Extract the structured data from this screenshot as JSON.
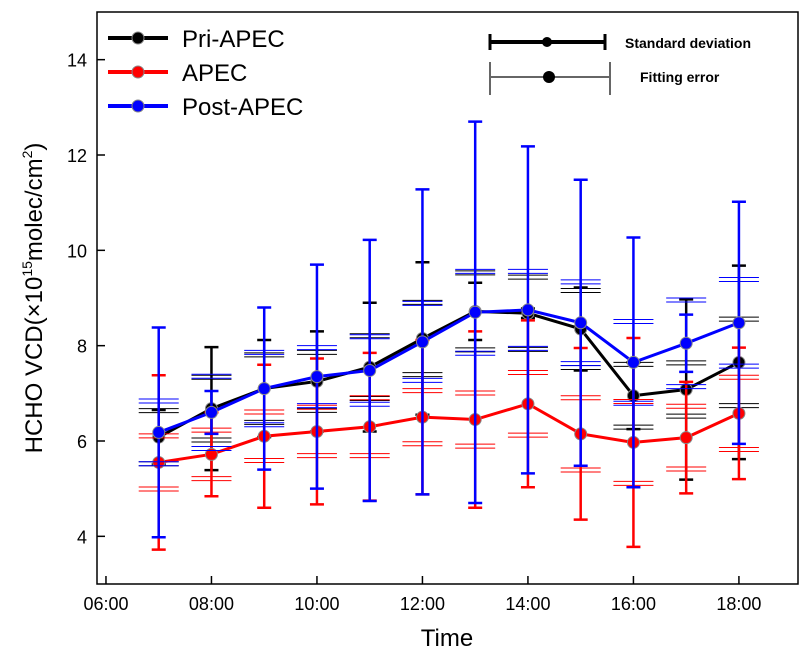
{
  "chart_data": {
    "type": "line",
    "ylabel": [
      "HCHO VCD(×10",
      "15",
      "molec/cm",
      "2",
      ")"
    ],
    "xlabel": "Time",
    "x": [
      7,
      8,
      9,
      10,
      11,
      12,
      13,
      14,
      15,
      16,
      17,
      18
    ],
    "xlim": [
      5.83,
      19.12
    ],
    "xticks": [
      {
        "value": 6,
        "label": "06:00"
      },
      {
        "value": 8,
        "label": "08:00"
      },
      {
        "value": 10,
        "label": "10:00"
      },
      {
        "value": 12,
        "label": "12:00"
      },
      {
        "value": 14,
        "label": "14:00"
      },
      {
        "value": 16,
        "label": "16:00"
      },
      {
        "value": 18,
        "label": "18:00"
      }
    ],
    "ylim": [
      3,
      15
    ],
    "yticks": [
      4,
      6,
      8,
      10,
      12,
      14
    ],
    "legend": "upper left",
    "error_legend": [
      "Standard deviation",
      "Fitting error"
    ],
    "series": [
      {
        "name": "Pri-APEC",
        "color": "#000000",
        "values": [
          6.08,
          6.68,
          7.1,
          7.25,
          7.55,
          8.15,
          8.72,
          8.68,
          8.35,
          6.95,
          7.08,
          7.65
        ],
        "std": [
          0.57,
          1.29,
          1.02,
          1.05,
          1.35,
          1.6,
          0.6,
          0.1,
          0.87,
          0.7,
          1.89,
          2.03
        ],
        "fit_err": [
          0.6,
          0.7,
          0.75,
          0.65,
          0.7,
          0.8,
          0.85,
          0.8,
          0.85,
          0.7,
          0.6,
          0.95
        ]
      },
      {
        "name": "APEC",
        "color": "#ff0000",
        "values": [
          5.55,
          5.72,
          6.1,
          6.2,
          6.3,
          6.5,
          6.45,
          6.78,
          6.15,
          5.97,
          6.07,
          6.58
        ],
        "std": [
          1.83,
          0.88,
          1.5,
          1.53,
          1.55,
          1.62,
          1.85,
          1.75,
          1.8,
          2.19,
          1.17,
          1.38
        ],
        "fit_err": [
          0.6,
          0.55,
          0.55,
          0.55,
          0.65,
          0.6,
          0.6,
          0.7,
          0.8,
          0.9,
          0.7,
          0.8
        ]
      },
      {
        "name": "Post-APEC",
        "color": "#0000ff",
        "values": [
          6.18,
          6.6,
          7.1,
          7.35,
          7.48,
          8.08,
          8.7,
          8.75,
          8.48,
          7.65,
          8.05,
          8.48
        ],
        "std": [
          2.2,
          0.45,
          1.7,
          2.35,
          2.74,
          3.2,
          4.0,
          3.43,
          3.0,
          2.62,
          0.6,
          2.54
        ],
        "fit_err": [
          0.7,
          0.8,
          0.8,
          0.65,
          0.75,
          0.85,
          0.9,
          0.85,
          0.9,
          0.9,
          0.95,
          0.95
        ]
      }
    ]
  }
}
